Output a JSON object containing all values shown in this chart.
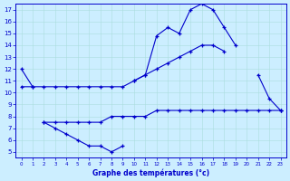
{
  "title": "Graphe des températures (°c)",
  "bg_color": "#cceeff",
  "line_color": "#0000cc",
  "grid_color": "#aadddd",
  "xlim": [
    -0.5,
    23.5
  ],
  "ylim": [
    4.5,
    17.5
  ],
  "xticks": [
    0,
    1,
    2,
    3,
    4,
    5,
    6,
    7,
    8,
    9,
    10,
    11,
    12,
    13,
    14,
    15,
    16,
    17,
    18,
    19,
    20,
    21,
    22,
    23
  ],
  "yticks": [
    5,
    6,
    7,
    8,
    9,
    10,
    11,
    12,
    13,
    14,
    15,
    16,
    17
  ],
  "series": [
    {
      "x": [
        0,
        1,
        2,
        3,
        4,
        5,
        6,
        7,
        8,
        9,
        10,
        11,
        12,
        13,
        14,
        15,
        16,
        17,
        18,
        19,
        20,
        21,
        22,
        23
      ],
      "y": [
        12.0,
        10.5,
        null,
        null,
        null,
        null,
        null,
        null,
        null,
        null,
        11.0,
        11.5,
        14.8,
        15.5,
        15.0,
        17.0,
        17.5,
        17.0,
        15.5,
        14.0,
        null,
        11.5,
        9.5,
        8.5
      ]
    },
    {
      "x": [
        2,
        3,
        4,
        5,
        6,
        7,
        8,
        9
      ],
      "y": [
        7.5,
        7.0,
        6.5,
        6.0,
        5.5,
        5.5,
        5.0,
        5.5
      ]
    },
    {
      "x": [
        0,
        1,
        2,
        3,
        4,
        5,
        6,
        7,
        8,
        9,
        10,
        11,
        12,
        13,
        14,
        15,
        16,
        17,
        18,
        19,
        20,
        21,
        22,
        23
      ],
      "y": [
        10.5,
        10.5,
        10.5,
        10.5,
        10.5,
        10.5,
        10.5,
        10.5,
        10.5,
        10.5,
        11.0,
        11.5,
        12.0,
        12.5,
        13.0,
        13.5,
        14.0,
        14.0,
        13.5,
        null,
        null,
        null,
        null,
        8.5
      ]
    },
    {
      "x": [
        2,
        3,
        4,
        5,
        6,
        7,
        8,
        9,
        10,
        11,
        12,
        13,
        14,
        15,
        16,
        17,
        18,
        19,
        20,
        21,
        22,
        23
      ],
      "y": [
        7.5,
        7.5,
        7.5,
        7.5,
        7.5,
        7.5,
        8.0,
        8.0,
        8.0,
        8.0,
        8.5,
        8.5,
        8.5,
        8.5,
        8.5,
        8.5,
        8.5,
        8.5,
        8.5,
        8.5,
        8.5,
        8.5
      ]
    }
  ]
}
